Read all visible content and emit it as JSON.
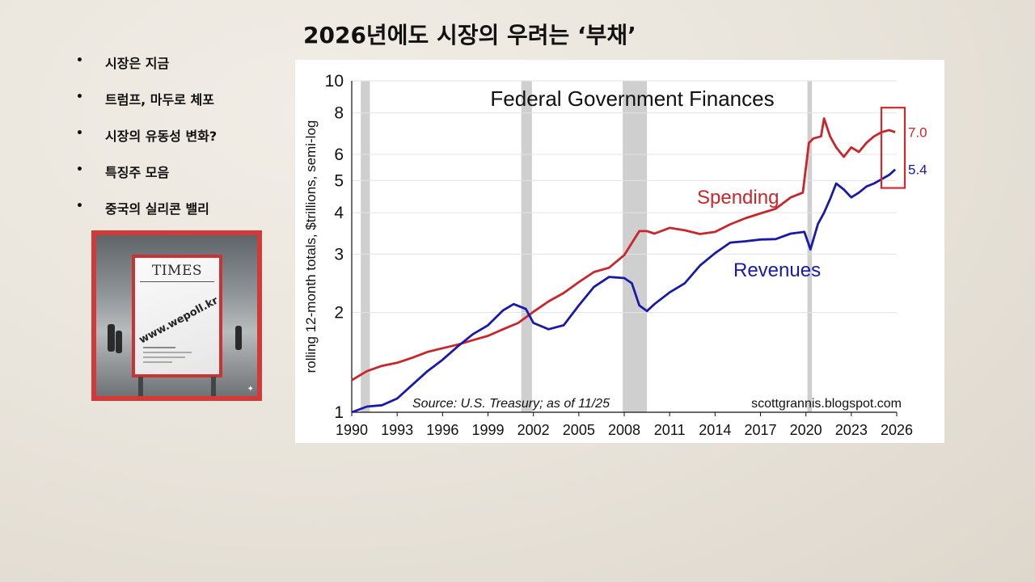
{
  "slide": {
    "title": "2026년에도 시장의 우려는 ‘부채’"
  },
  "bullets": [
    "시장은 지금",
    "트럼프, 마두로 체포",
    "시장의 유동성 변화?",
    "특징주 모음",
    "중국의 실리콘 밸리"
  ],
  "poster": {
    "brand": "TIMES",
    "watermark": "www.wepoll.kr"
  },
  "chart_data": {
    "type": "line",
    "title": "Federal Government Finances",
    "ylabel": "rolling 12-month totals, $trillions, semi-log",
    "xlabel": "",
    "source": "Source: U.S. Treasury; as of 11/25",
    "credit": "scottgrannis.blogspot.com",
    "y_scale": "log",
    "ylim": [
      1,
      10
    ],
    "xlim": [
      1990,
      2026
    ],
    "y_ticks": [
      1,
      2,
      3,
      4,
      5,
      6,
      8,
      10
    ],
    "x_ticks": [
      1990,
      1993,
      1996,
      1999,
      2002,
      2005,
      2008,
      2011,
      2014,
      2017,
      2020,
      2023,
      2026
    ],
    "recessions": [
      [
        1990.6,
        1991.2
      ],
      [
        2001.2,
        2001.9
      ],
      [
        2007.9,
        2009.5
      ],
      [
        2020.1,
        2020.4
      ]
    ],
    "highlight": {
      "x_range": [
        2025.2,
        2026.0
      ],
      "y_range": [
        4.75,
        8.3
      ]
    },
    "colors": {
      "spending": "#c8262b",
      "revenues": "#1a1aa8",
      "highlight": "#d22a2f",
      "recession": "#cfcfcf"
    },
    "series": [
      {
        "name": "Spending",
        "end_label": "7.0",
        "x": [
          1990,
          1991,
          1992,
          1993,
          1994,
          1995,
          1996,
          1997,
          1998,
          1999,
          2000,
          2001,
          2002,
          2003,
          2004,
          2005,
          2006,
          2007,
          2008,
          2009,
          2009.5,
          2010,
          2011,
          2012,
          2013,
          2014,
          2015,
          2016,
          2017,
          2018,
          2019,
          2019.8,
          2020.2,
          2020.5,
          2021.0,
          2021.2,
          2021.6,
          2022.0,
          2022.5,
          2023.0,
          2023.5,
          2024.0,
          2024.5,
          2025.0,
          2025.5,
          2025.9
        ],
        "values": [
          1.25,
          1.33,
          1.38,
          1.41,
          1.46,
          1.52,
          1.56,
          1.6,
          1.65,
          1.7,
          1.78,
          1.86,
          2.01,
          2.16,
          2.29,
          2.47,
          2.65,
          2.73,
          2.98,
          3.52,
          3.52,
          3.46,
          3.6,
          3.54,
          3.45,
          3.5,
          3.69,
          3.85,
          3.98,
          4.11,
          4.45,
          4.6,
          6.5,
          6.7,
          6.8,
          7.7,
          6.8,
          6.3,
          5.9,
          6.3,
          6.1,
          6.5,
          6.8,
          7.0,
          7.1,
          7.0
        ]
      },
      {
        "name": "Revenues",
        "end_label": "5.4",
        "x": [
          1990,
          1991,
          1992,
          1993,
          1994,
          1995,
          1996,
          1997,
          1998,
          1999,
          2000,
          2000.7,
          2001.5,
          2002,
          2003,
          2004,
          2005,
          2006,
          2007,
          2008,
          2008.5,
          2009,
          2009.5,
          2010,
          2011,
          2012,
          2013,
          2014,
          2015,
          2016,
          2017,
          2018,
          2019,
          2019.9,
          2020.3,
          2020.8,
          2021.2,
          2021.6,
          2022.0,
          2022.5,
          2023.0,
          2023.5,
          2024.0,
          2024.5,
          2025.0,
          2025.5,
          2025.9
        ],
        "values": [
          1.0,
          1.04,
          1.05,
          1.1,
          1.21,
          1.33,
          1.44,
          1.58,
          1.72,
          1.83,
          2.03,
          2.12,
          2.05,
          1.86,
          1.78,
          1.83,
          2.1,
          2.39,
          2.56,
          2.54,
          2.45,
          2.1,
          2.02,
          2.12,
          2.3,
          2.45,
          2.77,
          3.02,
          3.25,
          3.28,
          3.32,
          3.33,
          3.46,
          3.5,
          3.1,
          3.7,
          4.0,
          4.4,
          4.9,
          4.7,
          4.45,
          4.6,
          4.8,
          4.9,
          5.05,
          5.2,
          5.4
        ]
      }
    ]
  }
}
